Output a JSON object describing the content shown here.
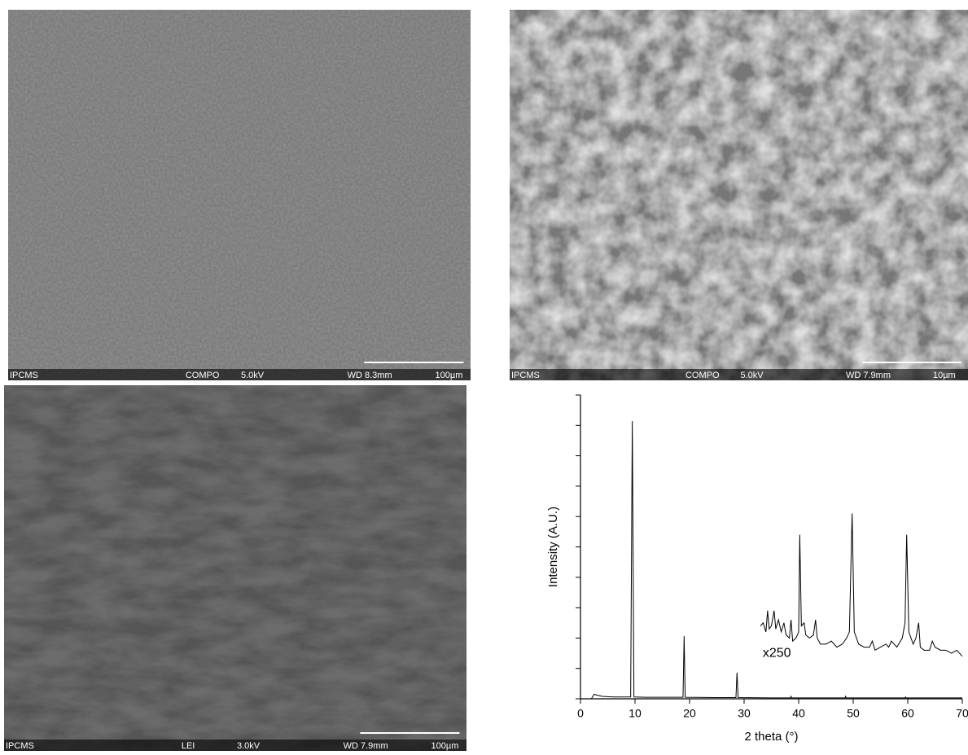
{
  "panels": [
    {
      "labels": [
        "IPCMS",
        "COMPO",
        "5.0kV",
        "WD 8.3mm",
        "100µm"
      ]
    },
    {
      "labels": [
        "IPCMS",
        "COMPO",
        "5.0kV",
        "WD 7.9mm",
        "10µm"
      ]
    },
    {
      "labels": [
        "IPCMS",
        "LEI",
        "3.0kV",
        "WD 7.9mm",
        "100µm"
      ]
    }
  ],
  "chart_data": {
    "type": "line",
    "xlabel": "2 theta (°)",
    "ylabel": "Intensity (A.U.)",
    "xlim": [
      0,
      70
    ],
    "xticks": [
      0,
      10,
      20,
      30,
      40,
      50,
      60,
      70
    ],
    "ylim": [
      0,
      100
    ],
    "yticks": [
      0,
      10,
      20,
      30,
      40,
      50,
      60,
      70,
      80,
      90,
      100
    ],
    "color": "#000000",
    "series": [
      {
        "x": [
          2,
          2.5,
          3,
          4,
          6,
          9.2,
          9.5,
          9.8,
          12,
          18.8,
          19,
          19.2,
          25,
          28.5,
          28.7,
          28.9,
          35,
          38.5,
          38.6,
          38.7,
          48.5,
          48.6,
          48.7,
          59.5,
          59.6,
          59.7,
          70
        ],
        "values": [
          0,
          1.5,
          1.2,
          0.8,
          0.6,
          0.6,
          91.4,
          0.6,
          0.5,
          0.5,
          20.6,
          0.5,
          0.4,
          0.4,
          8.6,
          0.4,
          0.3,
          0.3,
          0.8,
          0.3,
          0.3,
          0.8,
          0.3,
          0.3,
          0.6,
          0.3,
          0.3
        ]
      },
      {
        "x": [
          33,
          33.5,
          34,
          34.3,
          34.6,
          35,
          35.5,
          35.8,
          36.3,
          36.8,
          37.3,
          37.7,
          38.3,
          38.6,
          38.9,
          39.5,
          40,
          40.2,
          40.5,
          41,
          41.3,
          42,
          42.7,
          43.1,
          43.4,
          44,
          45,
          46,
          47,
          48,
          48.8,
          49.3,
          49.8,
          50.2,
          51,
          52,
          53,
          53.5,
          54,
          55,
          56,
          56.5,
          57,
          58,
          59,
          59.5,
          59.8,
          60.2,
          61,
          61.5,
          62,
          62.3,
          63,
          64,
          64.5,
          65,
          66,
          67,
          68,
          69,
          70
        ],
        "values": [
          24,
          25,
          22,
          29,
          23,
          24,
          29,
          23,
          26,
          22,
          25,
          21,
          20,
          26,
          19,
          20,
          22,
          54,
          24,
          25,
          21,
          20,
          21,
          26,
          20,
          18,
          18,
          19,
          17,
          18,
          20,
          22,
          61,
          22,
          18,
          17,
          17,
          19,
          16,
          17,
          18,
          17,
          19,
          17,
          20,
          25,
          54,
          22,
          18,
          20,
          25,
          17,
          16,
          16,
          19,
          17,
          16,
          16,
          15,
          16,
          14
        ]
      }
    ],
    "annotations": [
      {
        "text": "x250",
        "x": 36,
        "y": 15
      }
    ]
  }
}
